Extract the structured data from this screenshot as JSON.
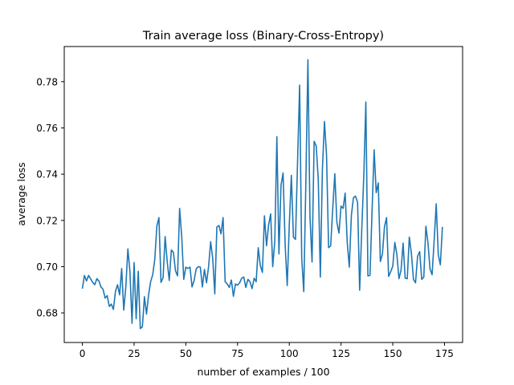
{
  "chart_data": {
    "type": "line",
    "title": "Train average loss  (Binary-Cross-Entropy)",
    "xlabel": "number of examples / 100",
    "ylabel": "average loss",
    "xlim": [
      -8.75,
      183.75
    ],
    "ylim": [
      0.6672,
      0.7952
    ],
    "grid": false,
    "line_color": "#1f77b4",
    "x_ticks": [
      0,
      25,
      50,
      75,
      100,
      125,
      150,
      175
    ],
    "x_tick_labels": [
      "0",
      "25",
      "50",
      "75",
      "100",
      "125",
      "150",
      "175"
    ],
    "y_ticks": [
      0.68,
      0.7,
      0.72,
      0.74,
      0.76,
      0.78
    ],
    "y_tick_labels": [
      "0.68",
      "0.70",
      "0.72",
      "0.74",
      "0.76",
      "0.78"
    ],
    "series": [
      {
        "x_start": 0,
        "x_step": 1,
        "values": [
          0.6905,
          0.6962,
          0.6938,
          0.6962,
          0.6947,
          0.6932,
          0.6922,
          0.6948,
          0.6938,
          0.6912,
          0.6902,
          0.6864,
          0.6875,
          0.6828,
          0.6838,
          0.6815,
          0.6893,
          0.6922,
          0.6878,
          0.6992,
          0.6812,
          0.6912,
          0.7077,
          0.6978,
          0.6755,
          0.7018,
          0.6775,
          0.698,
          0.6732,
          0.674,
          0.687,
          0.6795,
          0.6878,
          0.6935,
          0.6965,
          0.7032,
          0.7175,
          0.7212,
          0.6932,
          0.6952,
          0.713,
          0.7022,
          0.694,
          0.7072,
          0.7062,
          0.6982,
          0.696,
          0.7252,
          0.7132,
          0.6945,
          0.6998,
          0.6992,
          0.6998,
          0.6912,
          0.694,
          0.699,
          0.7,
          0.6998,
          0.6912,
          0.6988,
          0.693,
          0.7,
          0.7108,
          0.7035,
          0.6882,
          0.7172,
          0.7178,
          0.7142,
          0.7212,
          0.6935,
          0.6925,
          0.691,
          0.6942,
          0.6872,
          0.6925,
          0.692,
          0.693,
          0.695,
          0.6955,
          0.691,
          0.6945,
          0.6935,
          0.6905,
          0.695,
          0.6935,
          0.7082,
          0.7005,
          0.6975,
          0.722,
          0.709,
          0.718,
          0.7228,
          0.7,
          0.711,
          0.7562,
          0.7055,
          0.7352,
          0.7405,
          0.7095,
          0.6918,
          0.7182,
          0.7395,
          0.7128,
          0.7118,
          0.7455,
          0.7785,
          0.7038,
          0.6892,
          0.7362,
          0.7895,
          0.7215,
          0.702,
          0.7542,
          0.7522,
          0.7378,
          0.6955,
          0.742,
          0.7628,
          0.7482,
          0.7082,
          0.709,
          0.7252,
          0.7402,
          0.7192,
          0.7145,
          0.7262,
          0.7252,
          0.7318,
          0.7105,
          0.6998,
          0.7222,
          0.7298,
          0.7305,
          0.7278,
          0.6898,
          0.7155,
          0.7392,
          0.7712,
          0.696,
          0.6962,
          0.7242,
          0.7505,
          0.732,
          0.7362,
          0.7022,
          0.7055,
          0.7172,
          0.7212,
          0.6958,
          0.6978,
          0.7002,
          0.7105,
          0.7052,
          0.6948,
          0.6985,
          0.7102,
          0.695,
          0.6948,
          0.7128,
          0.7058,
          0.6945,
          0.693,
          0.7045,
          0.7065,
          0.6945,
          0.6955,
          0.7175,
          0.7105,
          0.699,
          0.6965,
          0.7112,
          0.7272,
          0.7052,
          0.7008,
          0.7172
        ]
      }
    ]
  }
}
